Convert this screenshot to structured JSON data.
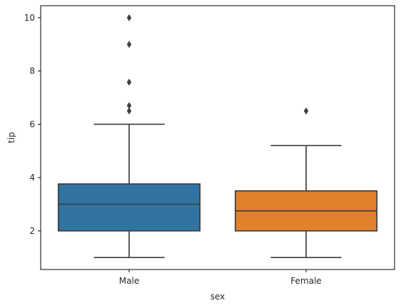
{
  "chart_data": {
    "type": "box",
    "title": "",
    "xlabel": "sex",
    "ylabel": "tip",
    "ylim": [
      0.55,
      10.45
    ],
    "yticks": [
      2,
      4,
      6,
      8,
      10
    ],
    "ytick_labels": [
      "2",
      "4",
      "6",
      "8",
      "10"
    ],
    "grid": false,
    "categories": [
      "Male",
      "Female"
    ],
    "boxes": [
      {
        "category": "Male",
        "color": "#3274a1",
        "whisker_low": 1.0,
        "q1": 2.0,
        "median": 3.0,
        "q3": 3.76,
        "whisker_high": 6.0,
        "outliers": [
          6.5,
          6.7,
          7.58,
          9.0,
          10.0
        ]
      },
      {
        "category": "Female",
        "color": "#e1812c",
        "whisker_low": 1.0,
        "q1": 2.0,
        "median": 2.75,
        "q3": 3.5,
        "whisker_high": 5.2,
        "outliers": [
          6.5
        ]
      }
    ],
    "line_color": "#3f3f3f"
  }
}
